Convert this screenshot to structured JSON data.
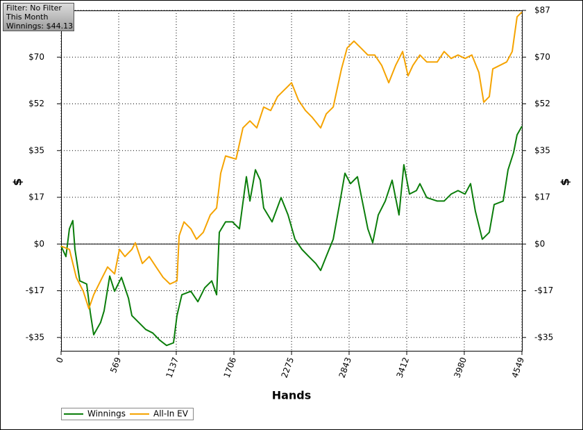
{
  "chart_data": {
    "type": "line",
    "xlabel": "Hands",
    "ylabel": "$",
    "y2label": "$",
    "annotations": [
      "Filter: No Filter",
      "This Month",
      "Winnings: $44.13"
    ],
    "xlim": [
      0,
      4549
    ],
    "xticks": [
      0,
      569,
      1137,
      1706,
      2275,
      2843,
      3412,
      3980,
      4549
    ],
    "ylim": [
      -40,
      87.5
    ],
    "yticks": [
      {
        "value": -35,
        "label": "-$35"
      },
      {
        "value": -17.5,
        "label": "-$17"
      },
      {
        "value": 0,
        "label": "$0"
      },
      {
        "value": 17.5,
        "label": "$17"
      },
      {
        "value": 35,
        "label": "$35"
      },
      {
        "value": 52.5,
        "label": "$52"
      },
      {
        "value": 70,
        "label": "$70"
      },
      {
        "value": 87.5,
        "label": "$87"
      }
    ],
    "y2lim": [
      -40,
      87.5
    ],
    "y2ticks": [
      {
        "value": -35,
        "label": "-$35"
      },
      {
        "value": -17.5,
        "label": "-$17"
      },
      {
        "value": 0,
        "label": "$0"
      },
      {
        "value": 17.5,
        "label": "$17"
      },
      {
        "value": 35,
        "label": "$35"
      },
      {
        "value": 52.5,
        "label": "$52"
      },
      {
        "value": 70,
        "label": "$70"
      },
      {
        "value": 87.5,
        "label": "$87"
      }
    ],
    "grid": true,
    "legend": "bottom-left",
    "series": [
      {
        "name": "Winnings",
        "color": "#0a7d0a",
        "x": [
          0,
          48,
          82,
          116,
          137,
          185,
          253,
          288,
          322,
          390,
          425,
          480,
          528,
          596,
          665,
          699,
          767,
          836,
          904,
          973,
          1041,
          1110,
          1144,
          1192,
          1281,
          1350,
          1418,
          1487,
          1535,
          1562,
          1624,
          1692,
          1761,
          1829,
          1864,
          1918,
          1966,
          2000,
          2083,
          2172,
          2240,
          2309,
          2377,
          2446,
          2514,
          2562,
          2617,
          2686,
          2754,
          2802,
          2857,
          2925,
          2973,
          3028,
          3076,
          3131,
          3200,
          3268,
          3336,
          3384,
          3439,
          3507,
          3542,
          3610,
          3713,
          3781,
          3850,
          3918,
          3987,
          4042,
          4090,
          4158,
          4227,
          4275,
          4364,
          4412,
          4467,
          4501,
          4549
        ],
        "values": [
          -0.8,
          -4.7,
          5.7,
          8.8,
          -2,
          -13.8,
          -15,
          -25.5,
          -34,
          -29.4,
          -25,
          -12,
          -17.7,
          -12.5,
          -20.3,
          -26.8,
          -29.4,
          -32,
          -33.3,
          -36,
          -38,
          -37,
          -26.8,
          -19,
          -17.7,
          -21.6,
          -16.4,
          -13.8,
          -19,
          4.4,
          8.3,
          8.3,
          5.7,
          25.2,
          16.1,
          27.8,
          23.9,
          13.5,
          8.3,
          17.4,
          10.9,
          1.8,
          -2,
          -4.7,
          -7.3,
          -9.9,
          -4.7,
          1.8,
          16.1,
          26.5,
          22.6,
          25.2,
          16.1,
          5.7,
          0.5,
          10.9,
          16.1,
          23.9,
          10.9,
          29.7,
          18.7,
          20,
          22.6,
          17.4,
          16.1,
          16.1,
          18.7,
          20,
          18.7,
          22.6,
          12.2,
          1.8,
          4.4,
          14.8,
          16.1,
          27.8,
          34.3,
          40.9,
          44.13
        ]
      },
      {
        "name": "All-In EV",
        "color": "#f5a300",
        "x": [
          0,
          82,
          150,
          219,
          274,
          322,
          390,
          459,
          528,
          576,
          630,
          699,
          733,
          802,
          870,
          938,
          1007,
          1075,
          1144,
          1165,
          1213,
          1281,
          1336,
          1404,
          1473,
          1535,
          1576,
          1624,
          1727,
          1795,
          1864,
          1932,
          2000,
          2069,
          2137,
          2206,
          2275,
          2343,
          2412,
          2480,
          2562,
          2617,
          2686,
          2768,
          2823,
          2891,
          2960,
          3028,
          3096,
          3165,
          3234,
          3302,
          3371,
          3425,
          3473,
          3542,
          3610,
          3713,
          3781,
          3850,
          3918,
          3987,
          4055,
          4124,
          4172,
          4227,
          4261,
          4330,
          4398,
          4453,
          4501,
          4549
        ],
        "values": [
          -0.8,
          -2,
          -12.5,
          -17.7,
          -24.2,
          -19,
          -13.8,
          -8.6,
          -11.2,
          -2,
          -4.7,
          -2,
          0.5,
          -7.3,
          -4.7,
          -8.6,
          -12.5,
          -15,
          -13.8,
          3.1,
          8.3,
          5.7,
          1.8,
          4.4,
          10.9,
          13.5,
          26.5,
          33,
          31.8,
          43.5,
          46.1,
          43.5,
          51.3,
          50,
          55.2,
          57.8,
          60.4,
          53.9,
          50,
          47.4,
          43.5,
          48.7,
          51.3,
          65.6,
          73.4,
          76,
          73.4,
          70.8,
          70.8,
          66.9,
          60.4,
          66.9,
          72.1,
          63,
          66.9,
          70.8,
          68.2,
          68.2,
          72.1,
          69.5,
          70.8,
          69.5,
          70.8,
          64.3,
          53.1,
          55.2,
          65.6,
          66.9,
          68.2,
          72.1,
          85.1,
          86.9
        ]
      }
    ]
  }
}
